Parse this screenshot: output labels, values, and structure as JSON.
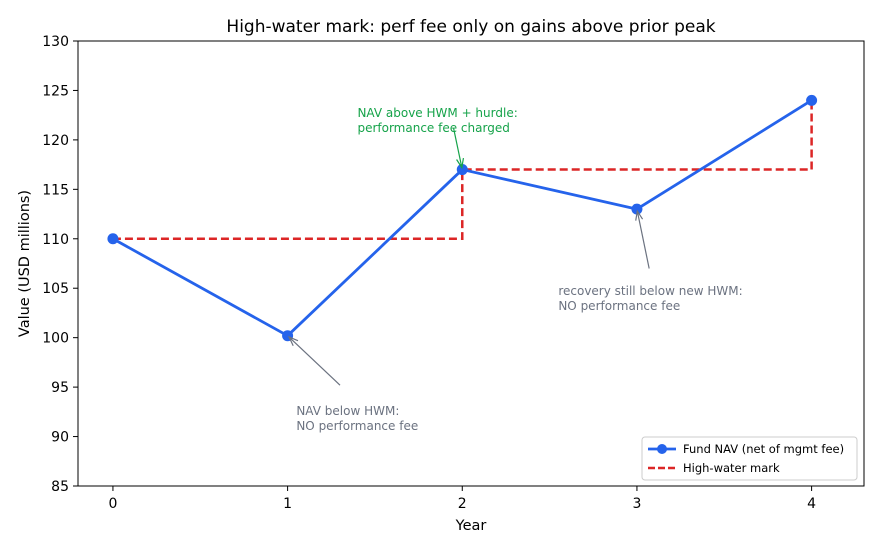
{
  "chart_data": {
    "type": "line",
    "title": "High-water mark: perf fee only on gains above prior peak",
    "xlabel": "Year",
    "ylabel": "Value (USD millions)",
    "x": [
      0,
      1,
      2,
      3,
      4
    ],
    "xticks": [
      "0",
      "1",
      "2",
      "3",
      "4"
    ],
    "xlim": [
      -0.2,
      4.3
    ],
    "ylim": [
      85,
      130
    ],
    "yticks": [
      85,
      90,
      95,
      100,
      105,
      110,
      115,
      120,
      125,
      130
    ],
    "grid": false,
    "legend_position": "lower-right",
    "series": [
      {
        "name": "Fund NAV (net of mgmt fee)",
        "values": [
          110,
          100.2,
          117,
          113,
          124
        ],
        "color": "#2563eb",
        "style": "solid",
        "marker": "circle"
      },
      {
        "name": "High-water mark",
        "values": [
          110,
          110,
          117,
          117,
          124
        ],
        "color": "#dc2626",
        "style": "dashed",
        "drawstyle": "steps-post"
      }
    ],
    "annotations": [
      {
        "lines": [
          "NAV below HWM:",
          "NO performance fee"
        ],
        "x": 1,
        "y": 100.2,
        "text_x": 1.05,
        "text_y": 92.2,
        "color": "#6b7280"
      },
      {
        "lines": [
          "NAV above HWM + hurdle:",
          "performance fee charged"
        ],
        "x": 2,
        "y": 117,
        "text_x": 1.4,
        "text_y": 122.3,
        "color": "#16a34a"
      },
      {
        "lines": [
          "recovery still below new HWM:",
          "NO performance fee"
        ],
        "x": 3,
        "y": 113,
        "text_x": 2.55,
        "text_y": 104.3,
        "color": "#6b7280"
      }
    ]
  }
}
